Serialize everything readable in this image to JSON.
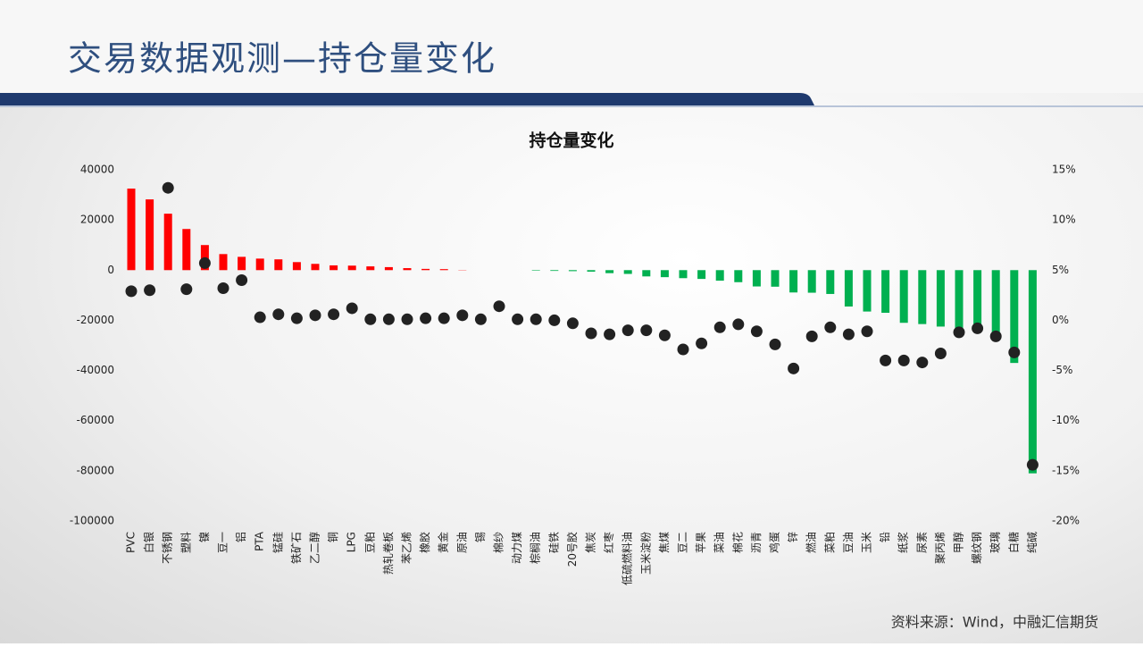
{
  "header": {
    "title": "交易数据观测—持仓量变化"
  },
  "footer": {
    "source": "资料来源：Wind，中融汇信期货"
  },
  "chart_data": {
    "type": "combo",
    "title": "持仓量变化",
    "categories": [
      "PVC",
      "白银",
      "不锈钢",
      "塑料",
      "镍",
      "豆一",
      "铝",
      "PTA",
      "锰硅",
      "铁矿石",
      "乙二醇",
      "铜",
      "LPG",
      "豆粕",
      "热轧卷板",
      "苯乙烯",
      "橡胶",
      "黄金",
      "原油",
      "锡",
      "棉纱",
      "动力煤",
      "棕榈油",
      "硅铁",
      "20号胶",
      "焦炭",
      "红枣",
      "低硫燃料油",
      "玉米淀粉",
      "焦煤",
      "豆二",
      "苹果",
      "菜油",
      "棉花",
      "沥青",
      "鸡蛋",
      "锌",
      "燃油",
      "菜粕",
      "豆油",
      "玉米",
      "铅",
      "纸浆",
      "尿素",
      "聚丙烯",
      "甲醇",
      "螺纹钢",
      "玻璃",
      "白糖",
      "纯碱"
    ],
    "series": [
      {
        "type": "bar",
        "positive_color": "#ff0000",
        "negative_color": "#00b050",
        "values": [
          32500,
          28200,
          22500,
          16400,
          10000,
          6400,
          5300,
          4600,
          4300,
          3200,
          2500,
          1900,
          1800,
          1500,
          1200,
          800,
          500,
          400,
          100,
          0,
          0,
          0,
          -200,
          -300,
          -400,
          -600,
          -1200,
          -1500,
          -2500,
          -2800,
          -3200,
          -3500,
          -4200,
          -4800,
          -6500,
          -6600,
          -8900,
          -9000,
          -9500,
          -14500,
          -16500,
          -17000,
          -21000,
          -21500,
          -22500,
          -23500,
          -24500,
          -25000,
          -37000,
          -81000
        ]
      },
      {
        "type": "scatter",
        "axis": "y2",
        "color": "#222222",
        "values": [
          2.9,
          3.0,
          13.2,
          3.1,
          5.7,
          3.2,
          4.0,
          0.3,
          0.6,
          0.2,
          0.5,
          0.6,
          1.2,
          0.1,
          0.1,
          0.1,
          0.2,
          0.2,
          0.5,
          0.1,
          1.4,
          0.1,
          0.1,
          0.0,
          -0.3,
          -1.3,
          -1.4,
          -1.0,
          -1.0,
          -1.5,
          -2.9,
          -2.3,
          -0.7,
          -0.4,
          -1.1,
          -2.4,
          -4.8,
          -1.6,
          -0.7,
          -1.4,
          -1.1,
          -4.0,
          -4.0,
          -4.2,
          -3.3,
          -1.2,
          -0.8,
          -1.6,
          -3.2,
          -14.4
        ]
      }
    ],
    "ylim": [
      -100000,
      40000
    ],
    "yticks": [
      -100000,
      -80000,
      -60000,
      -40000,
      -20000,
      0,
      20000,
      40000
    ],
    "y2lim": [
      -20,
      15
    ],
    "y2ticks": [
      {
        "value": -20,
        "label": "-20%"
      },
      {
        "value": -15,
        "label": "-15%"
      },
      {
        "value": -10,
        "label": "-10%"
      },
      {
        "value": -5,
        "label": "-5%"
      },
      {
        "value": 0,
        "label": "0%"
      },
      {
        "value": 5,
        "label": "5%"
      },
      {
        "value": 10,
        "label": "10%"
      },
      {
        "value": 15,
        "label": "15%"
      }
    ],
    "grid": false
  }
}
